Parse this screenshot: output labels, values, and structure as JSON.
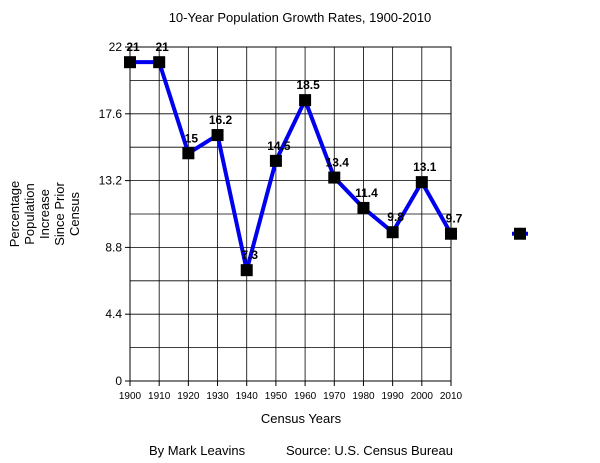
{
  "chart_data": {
    "type": "line",
    "title": "10-Year Population Growth Rates, 1900-2010",
    "xlabel": "Census Years",
    "ylabel": [
      "Percentage",
      "Population",
      "Increase",
      "Since Prior",
      "Census"
    ],
    "x": [
      1900,
      1910,
      1920,
      1930,
      1940,
      1950,
      1960,
      1970,
      1980,
      1990,
      2000,
      2010
    ],
    "series": [
      {
        "values": [
          21,
          21,
          15,
          16.2,
          7.3,
          14.5,
          18.5,
          13.4,
          11.4,
          9.8,
          13.1,
          9.7
        ],
        "data_labels": [
          "21",
          "21",
          "15",
          "16.2",
          "7.3",
          "14.5",
          "18.5",
          "13.4",
          "11.4",
          "9.8",
          "13.1",
          "9.7"
        ],
        "color": "#0000ee",
        "marker_color": "#000000"
      }
    ],
    "xlim": [
      1900,
      2010
    ],
    "ylim": [
      0,
      22
    ],
    "yticks": [
      0,
      4.4,
      8.8,
      13.2,
      17.6,
      22
    ],
    "ytick_labels": [
      "0",
      "4.4",
      "8.8",
      "13.2",
      "17.6",
      "22"
    ],
    "xtick_labels": [
      "1900",
      "1910",
      "1920",
      "1930",
      "1940",
      "1950",
      "1960",
      "1970",
      "1980",
      "1990",
      "2000",
      "2010"
    ],
    "minor_grid_step": 2.2,
    "grid": true,
    "legend": "right"
  },
  "footer": {
    "author": "By Mark Leavins",
    "source": "Source: U.S. Census Bureau"
  }
}
